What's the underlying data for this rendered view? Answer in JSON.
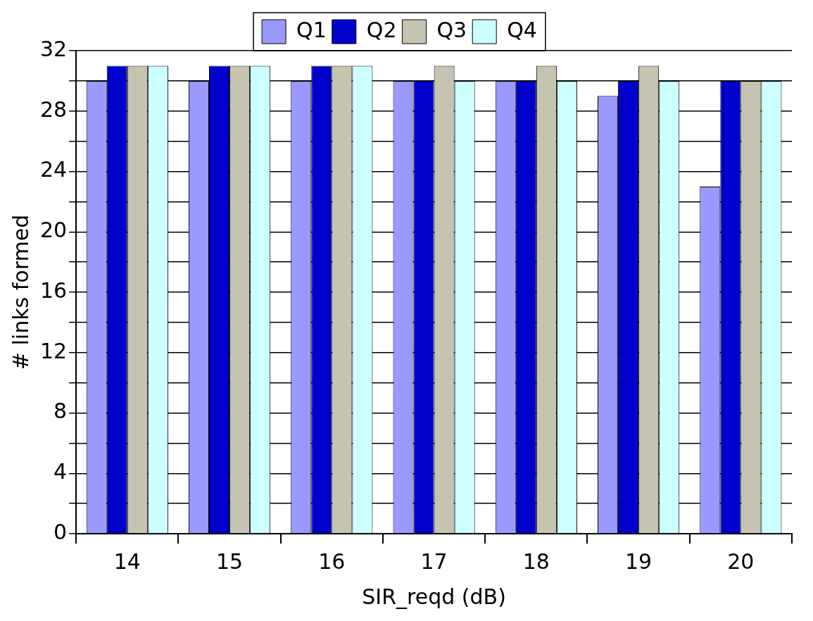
{
  "chart_data": {
    "type": "bar",
    "xlabel": "SIR_reqd (dB)",
    "ylabel": "# links formed",
    "categories": [
      "14",
      "15",
      "16",
      "17",
      "18",
      "19",
      "20"
    ],
    "series": [
      {
        "name": "Q1",
        "color": "#9999ff",
        "values": [
          30,
          30,
          30,
          30,
          30,
          29,
          23
        ]
      },
      {
        "name": "Q2",
        "color": "#0000cc",
        "values": [
          31,
          31,
          31,
          30,
          30,
          30,
          30
        ]
      },
      {
        "name": "Q3",
        "color": "#c4c4b0",
        "values": [
          31,
          31,
          31,
          31,
          31,
          31,
          30
        ]
      },
      {
        "name": "Q4",
        "color": "#ccffff",
        "values": [
          31,
          31,
          31,
          30,
          30,
          30,
          30
        ]
      }
    ],
    "ylim": [
      0,
      32
    ],
    "yticks": [
      0,
      {
        "value": 2,
        "label": null
      },
      4,
      {
        "value": 6,
        "label": null
      },
      8,
      {
        "value": 10,
        "label": null
      },
      12,
      {
        "value": 14,
        "label": null
      },
      16,
      {
        "value": 18,
        "label": null
      },
      20,
      {
        "value": 22,
        "label": null
      },
      24,
      {
        "value": 26,
        "label": null
      },
      28,
      {
        "value": 30,
        "label": null
      },
      32
    ],
    "grid": "y",
    "legend": "top"
  }
}
